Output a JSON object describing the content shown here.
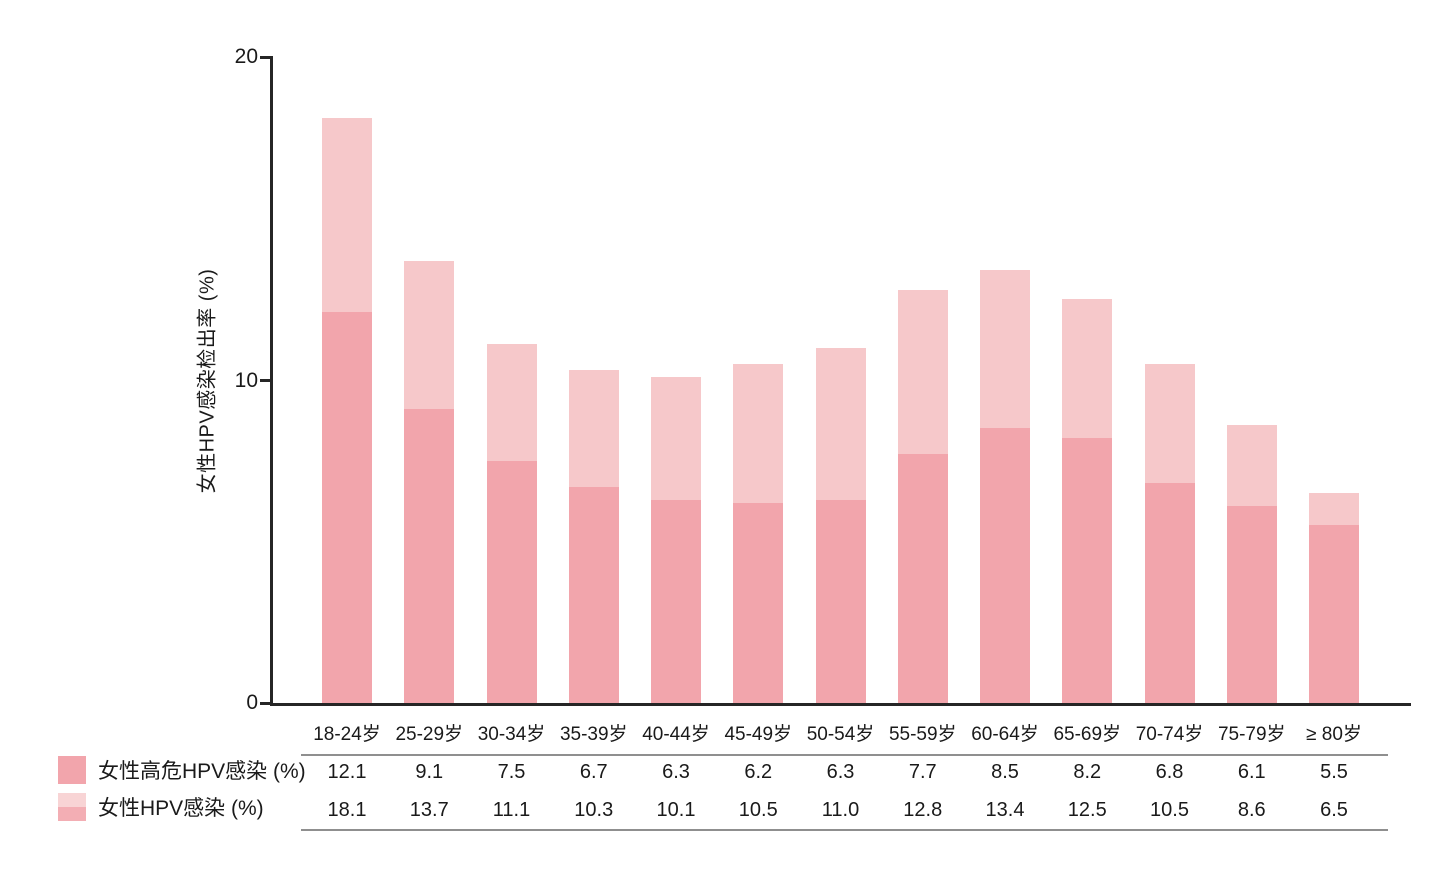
{
  "chart_data": {
    "type": "bar",
    "bar_style": "overlay",
    "title": "",
    "ylabel": "女性HPV感染检出率 (%)",
    "xlabel": "",
    "ylim": [
      0,
      20
    ],
    "ytick_values": [
      20,
      10,
      0
    ],
    "ytick_labels": [
      "20",
      "10",
      "0"
    ],
    "grid": false,
    "legend_position": "bottom-left",
    "categories": [
      "18-24岁",
      "25-29岁",
      "30-34岁",
      "35-39岁",
      "40-44岁",
      "45-49岁",
      "50-54岁",
      "55-59岁",
      "60-64岁",
      "65-69岁",
      "70-74岁",
      "75-79岁",
      "≥ 80岁"
    ],
    "series": [
      {
        "name": "女性高危HPV感染 (%)",
        "values": [
          12.1,
          9.1,
          7.5,
          6.7,
          6.3,
          6.2,
          6.3,
          7.7,
          8.5,
          8.2,
          6.8,
          6.1,
          5.5
        ],
        "color": "#f2a5ac"
      },
      {
        "name": "女性HPV感染 (%)",
        "values": [
          18.1,
          13.7,
          11.1,
          10.3,
          10.1,
          10.5,
          11.0,
          12.8,
          13.4,
          12.5,
          10.5,
          8.6,
          6.5
        ],
        "color": "#f6c8ca"
      }
    ],
    "value_table_rows": [
      {
        "label": "女性高危HPV感染 (%)",
        "values": [
          "12.1",
          "9.1",
          "7.5",
          "6.7",
          "6.3",
          "6.2",
          "6.3",
          "7.7",
          "8.5",
          "8.2",
          "6.8",
          "6.1",
          "5.5"
        ]
      },
      {
        "label": "女性HPV感染 (%)",
        "values": [
          "18.1",
          "13.7",
          "11.1",
          "10.3",
          "10.1",
          "10.5",
          "11.0",
          "12.8",
          "13.4",
          "12.5",
          "10.5",
          "8.6",
          "6.5"
        ]
      }
    ],
    "legend_entries": [
      {
        "label": "女性高危HPV感染 (%)",
        "swatch_top": "#f2a5ac",
        "swatch_bottom": "#f2a5ac"
      },
      {
        "label": "女性HPV感染 (%)",
        "swatch_top": "#f8d4d5",
        "swatch_bottom": "#f3aeb4"
      }
    ]
  },
  "colors": {
    "background": "#ffffff",
    "axis": "#262626",
    "text": "#1a1a1a",
    "table_rule": "#8f8f8f",
    "bar_total": "#f6c8ca",
    "bar_high_risk": "#f2a5ac"
  }
}
